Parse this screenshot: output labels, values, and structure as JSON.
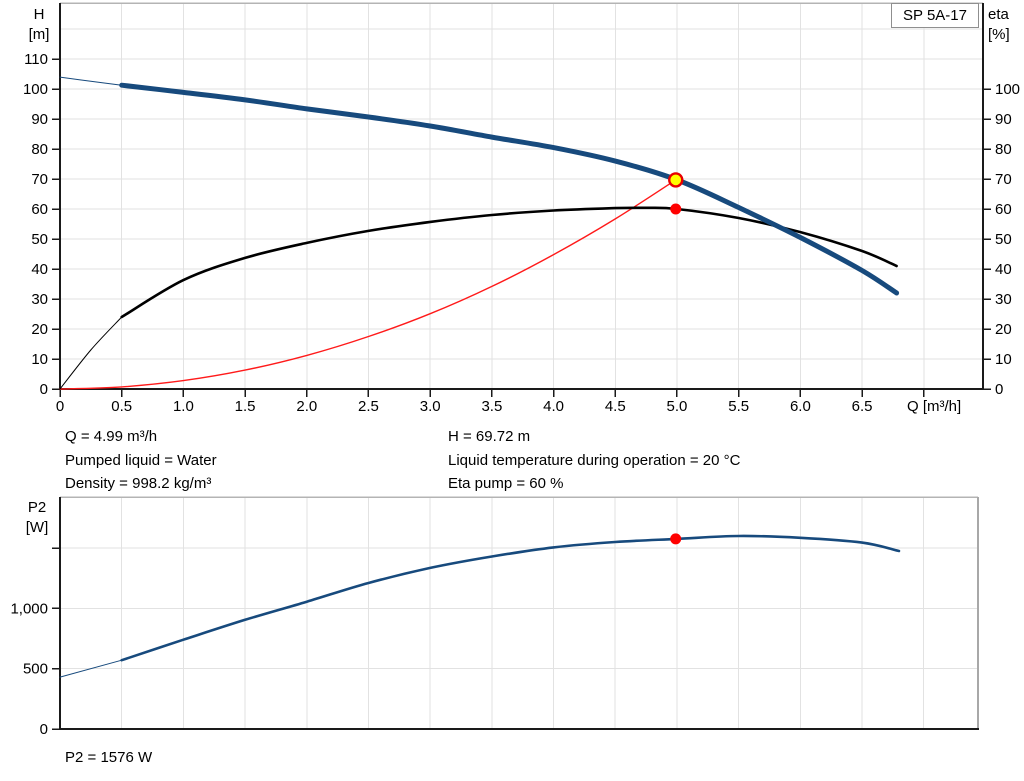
{
  "title_box": {
    "label": "SP 5A-17"
  },
  "axes_labels": {
    "h": [
      "H",
      "[m]"
    ],
    "eta": [
      "eta",
      "[%]"
    ],
    "p2": [
      "P2",
      "[W]"
    ]
  },
  "info": {
    "left": [
      "Q = 4.99 m³/h",
      "Pumped liquid = Water",
      "Density = 998.2 kg/m³"
    ],
    "right": [
      "H = 69.72 m",
      "Liquid temperature during operation = 20 °C",
      "Eta pump = 60 %"
    ],
    "p2_result": "P2 = 1576 W"
  },
  "colors": {
    "curve_blue": "#174a7d",
    "curve_black": "#000000",
    "system_red": "#ff1a1a",
    "marker_red": "#ff0000",
    "marker_yellow": "#ffff00",
    "marker_ring": "#e80000",
    "grid": "#e2e2e2",
    "axis": "#1a1a1a",
    "border_gray": "#b4b4b4"
  },
  "chart_data": [
    {
      "type": "line",
      "name": "hq-eta-chart",
      "title": "SP 5A-17",
      "xlabel": "Q [m³/h]",
      "ylabel": "H [m]",
      "y2label": "eta [%]",
      "xlim": [
        0,
        7.48
      ],
      "ylim": [
        0,
        128.7
      ],
      "grid": true,
      "x_ticks": [
        {
          "v": 0,
          "l": "0"
        },
        {
          "v": 0.5,
          "l": "0.5"
        },
        {
          "v": 1,
          "l": "1.0"
        },
        {
          "v": 1.5,
          "l": "1.5"
        },
        {
          "v": 2,
          "l": "2.0"
        },
        {
          "v": 2.5,
          "l": "2.5"
        },
        {
          "v": 3,
          "l": "3.0"
        },
        {
          "v": 3.5,
          "l": "3.5"
        },
        {
          "v": 4,
          "l": "4.0"
        },
        {
          "v": 4.5,
          "l": "4.5"
        },
        {
          "v": 5,
          "l": "5.0"
        },
        {
          "v": 5.5,
          "l": "5.5"
        },
        {
          "v": 6,
          "l": "6.0"
        },
        {
          "v": 6.5,
          "l": "6.5"
        },
        {
          "v": 7,
          "l": ""
        }
      ],
      "y_ticks": [
        {
          "v": 0,
          "l": "0"
        },
        {
          "v": 10,
          "l": "10"
        },
        {
          "v": 20,
          "l": "20"
        },
        {
          "v": 30,
          "l": "30"
        },
        {
          "v": 40,
          "l": "40"
        },
        {
          "v": 50,
          "l": "50"
        },
        {
          "v": 60,
          "l": "60"
        },
        {
          "v": 70,
          "l": "70"
        },
        {
          "v": 80,
          "l": "80"
        },
        {
          "v": 90,
          "l": "90"
        },
        {
          "v": 100,
          "l": "100"
        },
        {
          "v": 110,
          "l": "110"
        }
      ],
      "y2_ticks": [
        {
          "v": 0,
          "l": "0"
        },
        {
          "v": 10,
          "l": "10"
        },
        {
          "v": 20,
          "l": "20"
        },
        {
          "v": 30,
          "l": "30"
        },
        {
          "v": 40,
          "l": "40"
        },
        {
          "v": 50,
          "l": "50"
        },
        {
          "v": 60,
          "l": "60"
        },
        {
          "v": 70,
          "l": "70"
        },
        {
          "v": 80,
          "l": "80"
        },
        {
          "v": 90,
          "l": "90"
        },
        {
          "v": 100,
          "l": "100"
        }
      ],
      "x_grid": [
        0.5,
        1,
        1.5,
        2,
        2.5,
        3,
        3.5,
        4,
        4.5,
        5,
        5.5,
        6,
        6.5,
        7
      ],
      "y_grid": [
        10,
        20,
        30,
        40,
        50,
        60,
        70,
        80,
        90,
        100,
        110,
        120
      ],
      "series": [
        {
          "name": "system-curve",
          "color": "system_red",
          "width": 1.4,
          "points": [
            [
              0,
              0
            ],
            [
              0.5,
              0.7
            ],
            [
              1,
              2.8
            ],
            [
              1.5,
              6.3
            ],
            [
              2,
              11.2
            ],
            [
              2.5,
              17.5
            ],
            [
              3,
              25.1
            ],
            [
              3.5,
              34.2
            ],
            [
              4,
              44.8
            ],
            [
              4.5,
              56.7
            ],
            [
              4.99,
              69.72
            ]
          ]
        },
        {
          "name": "efficiency-curve-eta",
          "color": "curve_black",
          "width": 2.6,
          "thin_until": 0.5,
          "points": [
            [
              0,
              0
            ],
            [
              0.25,
              13
            ],
            [
              0.5,
              24
            ],
            [
              1,
              36.3
            ],
            [
              1.5,
              43.7
            ],
            [
              2,
              48.7
            ],
            [
              2.5,
              52.7
            ],
            [
              3,
              55.7
            ],
            [
              3.5,
              58
            ],
            [
              4,
              59.5
            ],
            [
              4.5,
              60.3
            ],
            [
              4.75,
              60.4
            ],
            [
              5,
              60
            ],
            [
              5.5,
              57
            ],
            [
              6,
              52.3
            ],
            [
              6.5,
              46
            ],
            [
              6.78,
              41
            ]
          ]
        },
        {
          "name": "pump-curve-H",
          "color": "curve_blue",
          "width": 5,
          "thin_until": 0.5,
          "points": [
            [
              0,
              104
            ],
            [
              0.25,
              102.6
            ],
            [
              0.5,
              101.3
            ],
            [
              1,
              98.9
            ],
            [
              1.5,
              96.4
            ],
            [
              2,
              93.4
            ],
            [
              2.5,
              90.7
            ],
            [
              3,
              87.7
            ],
            [
              3.5,
              84
            ],
            [
              4,
              80.5
            ],
            [
              4.5,
              76
            ],
            [
              5,
              69.72
            ],
            [
              5.5,
              60.5
            ],
            [
              6,
              50.5
            ],
            [
              6.5,
              39.5
            ],
            [
              6.78,
              32
            ]
          ]
        }
      ],
      "markers": [
        {
          "name": "duty-point-eta",
          "x": 4.99,
          "y": 60,
          "r": 5.5,
          "fill": "marker_red"
        },
        {
          "name": "duty-point-h",
          "x": 4.99,
          "y": 69.72,
          "r": 6.5,
          "fill": "marker_yellow",
          "stroke": "marker_ring",
          "sw": 2.4
        }
      ]
    },
    {
      "type": "line",
      "name": "p2-chart",
      "ylabel": "P2 [W]",
      "xlim": [
        0,
        7.44
      ],
      "ylim": [
        0,
        1923
      ],
      "grid": true,
      "x_ticks": [],
      "y_ticks": [
        {
          "v": 0,
          "l": "0"
        },
        {
          "v": 500,
          "l": "500"
        },
        {
          "v": 1000,
          "l": "1,000"
        },
        {
          "v": 1500,
          "l": ""
        }
      ],
      "x_grid": [
        0.5,
        1,
        1.5,
        2,
        2.5,
        3,
        3.5,
        4,
        4.5,
        5,
        5.5,
        6,
        6.5,
        7
      ],
      "y_grid": [
        500,
        1000,
        1500
      ],
      "series": [
        {
          "name": "power-curve-P2",
          "color": "curve_blue",
          "width": 2.6,
          "thin_until": 0.5,
          "points": [
            [
              0,
              430
            ],
            [
              0.5,
              570
            ],
            [
              1,
              740
            ],
            [
              1.5,
              905
            ],
            [
              2,
              1055
            ],
            [
              2.5,
              1210
            ],
            [
              3,
              1335
            ],
            [
              3.5,
              1430
            ],
            [
              4,
              1505
            ],
            [
              4.5,
              1550
            ],
            [
              5,
              1576
            ],
            [
              5.5,
              1600
            ],
            [
              6,
              1585
            ],
            [
              6.5,
              1545
            ],
            [
              6.8,
              1475
            ]
          ]
        }
      ],
      "markers": [
        {
          "name": "duty-point-p2",
          "x": 4.99,
          "y": 1576,
          "r": 5.5,
          "fill": "marker_red"
        }
      ]
    }
  ]
}
